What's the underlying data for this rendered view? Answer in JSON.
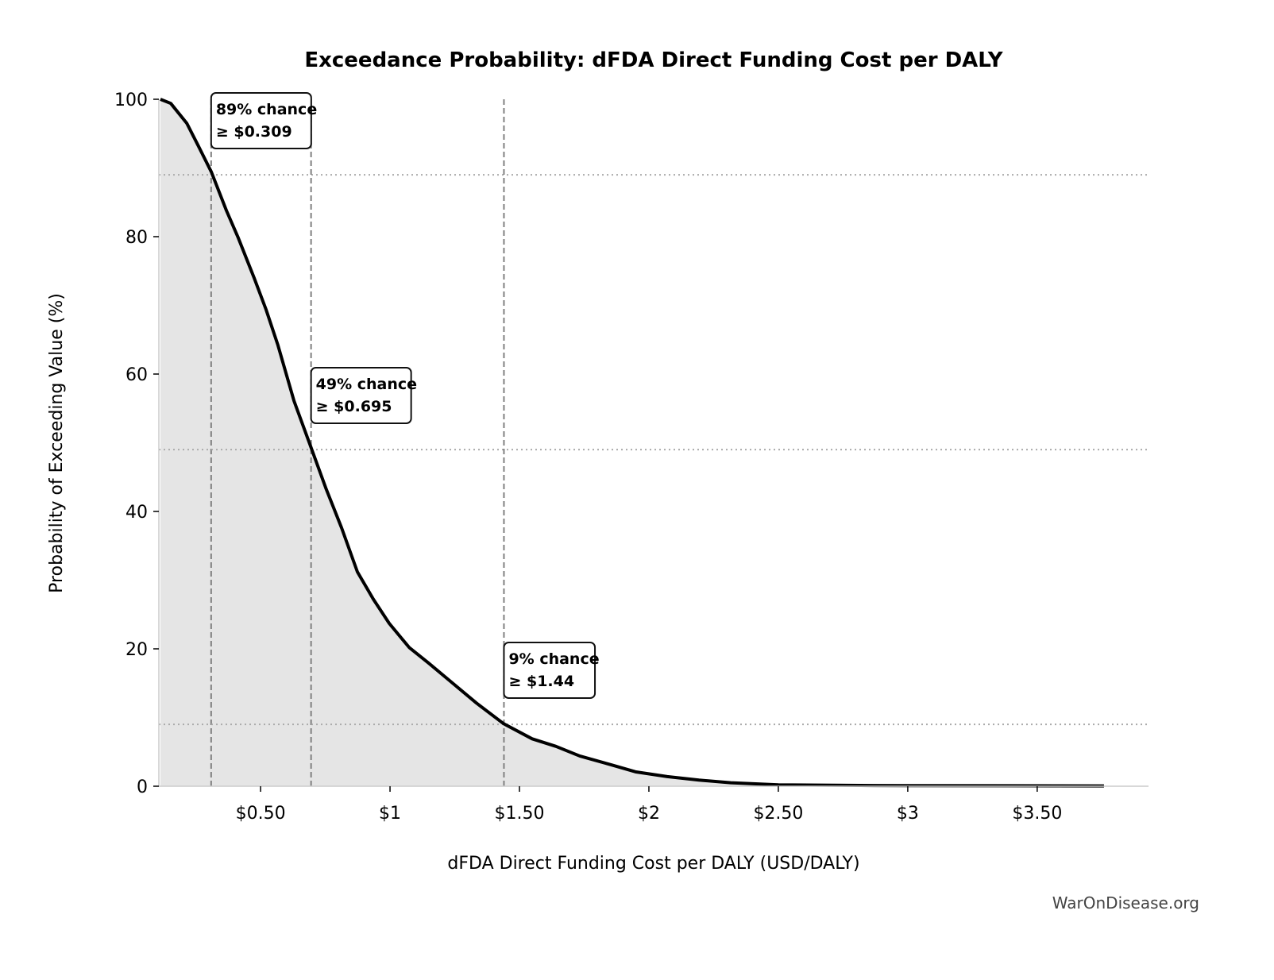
{
  "chart_data": {
    "type": "area",
    "title": "Exceedance Probability: dFDA Direct Funding Cost per DALY",
    "xlabel": "dFDA Direct Funding Cost per DALY (USD/DALY)",
    "ylabel": "Probability of Exceeding Value (%)",
    "xlim": [
      0.107,
      3.93
    ],
    "ylim": [
      0,
      100
    ],
    "grid": false,
    "x_ticks": [
      {
        "value": 0.5,
        "label": "$0.50"
      },
      {
        "value": 1,
        "label": "$1"
      },
      {
        "value": 1.5,
        "label": "$1.50"
      },
      {
        "value": 2,
        "label": "$2"
      },
      {
        "value": 2.5,
        "label": "$2.50"
      },
      {
        "value": 3,
        "label": "$3"
      },
      {
        "value": 3.5,
        "label": "$3.50"
      }
    ],
    "y_ticks": [
      {
        "value": 0,
        "label": "0"
      },
      {
        "value": 20,
        "label": "20"
      },
      {
        "value": 40,
        "label": "40"
      },
      {
        "value": 60,
        "label": "60"
      },
      {
        "value": 80,
        "label": "80"
      },
      {
        "value": 100,
        "label": "100"
      }
    ],
    "series": [
      {
        "color": "#000000",
        "fill": "#e5e5e5",
        "x": [
          0.113,
          0.153,
          0.215,
          0.261,
          0.31,
          0.368,
          0.414,
          0.475,
          0.521,
          0.567,
          0.629,
          0.696,
          0.752,
          0.813,
          0.874,
          0.936,
          0.997,
          1.074,
          1.15,
          1.242,
          1.334,
          1.439,
          1.549,
          1.641,
          1.733,
          1.856,
          1.948,
          2.071,
          2.193,
          2.316,
          2.5,
          2.868,
          3.758
        ],
        "y": [
          100,
          99.4,
          96.5,
          93.1,
          89.4,
          83.8,
          79.8,
          74,
          69.4,
          64.2,
          56.1,
          49.2,
          43.4,
          37.6,
          31.2,
          27.2,
          23.7,
          20.2,
          17.9,
          15,
          12.1,
          9.1,
          6.9,
          5.8,
          4.4,
          3.1,
          2.1,
          1.4,
          0.9,
          0.5,
          0.2,
          0.1,
          0.05
        ]
      }
    ],
    "annotations": [
      {
        "probability": 89,
        "value": 0.309,
        "line1": "89% chance",
        "line2": "≥ $0.309"
      },
      {
        "probability": 49,
        "value": 0.695,
        "line1": "49% chance",
        "line2": "≥ $0.695"
      },
      {
        "probability": 9,
        "value": 1.44,
        "line1": "9% chance",
        "line2": "≥ $1.44"
      }
    ],
    "reference_line_color": "#808080"
  },
  "watermark": "WarOnDisease.org"
}
